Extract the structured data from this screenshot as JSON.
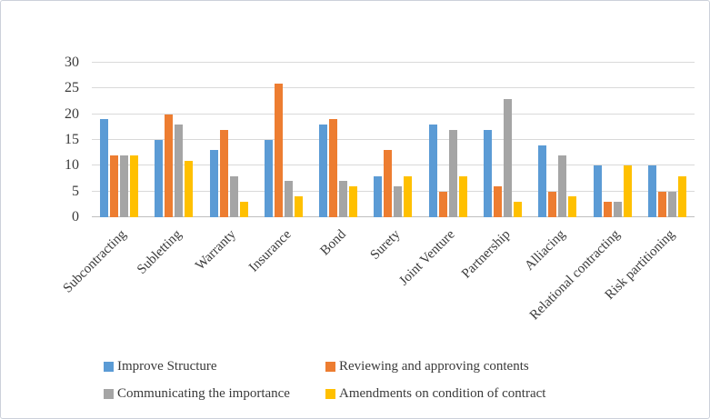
{
  "figure": {
    "background": "#ffffff",
    "border_color": "#ccd1da",
    "text_color": "#3a3a3a"
  },
  "chart_data": {
    "type": "bar",
    "title": "",
    "xlabel": "",
    "ylabel": "",
    "categories": [
      "Subcontracting",
      "Subletting",
      "Warranty",
      "Insurance",
      "Bond",
      "Surety",
      "Joint Venture",
      "Partnership",
      "Alliacing",
      "Relational contracting",
      "Risk partitioning"
    ],
    "series": [
      {
        "name": "Improve Structure",
        "color": "#5B9BD5",
        "values": [
          19,
          15,
          13,
          15,
          18,
          8,
          18,
          17,
          14,
          10,
          10
        ]
      },
      {
        "name": "Reviewing and approving contents",
        "color": "#ED7D31",
        "values": [
          12,
          20,
          17,
          26,
          19,
          13,
          5,
          6,
          5,
          3,
          5
        ]
      },
      {
        "name": "Communicating the importance",
        "color": "#A5A5A5",
        "values": [
          12,
          18,
          8,
          7,
          7,
          6,
          17,
          23,
          12,
          3,
          5
        ]
      },
      {
        "name": "Amendments on condition of contract",
        "color": "#FFC000",
        "values": [
          12,
          11,
          3,
          4,
          6,
          8,
          8,
          3,
          4,
          10,
          8
        ]
      }
    ],
    "ylim": [
      0,
      30
    ],
    "yticks": [
      0,
      5,
      10,
      15,
      20,
      25,
      30
    ],
    "grid": "horizontal",
    "gridline_color": "#D9D9D9",
    "axis_line_color": "#BFBFBF",
    "legend_position": "bottom",
    "x_label_rotation_deg": -45
  }
}
